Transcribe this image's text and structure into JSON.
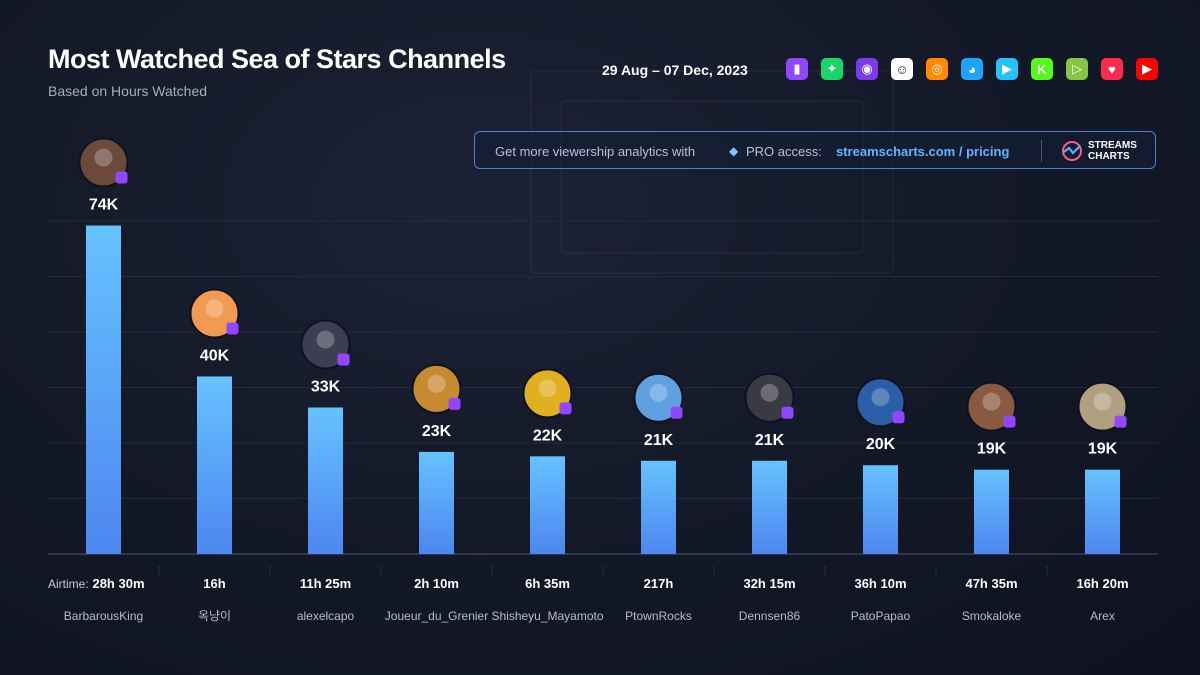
{
  "header": {
    "title": "Most Watched Sea of Stars Channels",
    "subtitle": "Based on Hours Watched",
    "date_range": "29 Aug – 07 Dec, 2023"
  },
  "platforms": [
    {
      "name": "twitch-icon",
      "color": "#9146ff",
      "glyph": "▮"
    },
    {
      "name": "trovo-icon",
      "color": "#19d66b",
      "glyph": "✦"
    },
    {
      "name": "kick-alt-icon",
      "color": "#7c3aed",
      "glyph": "◉"
    },
    {
      "name": "ghost-icon",
      "color": "#ffffff",
      "glyph": "☺"
    },
    {
      "name": "vk-play-icon",
      "color": "#ff8a00",
      "glyph": "◎"
    },
    {
      "name": "bigo-icon",
      "color": "#1fa3ff",
      "glyph": "◕"
    },
    {
      "name": "mobile-stream-icon",
      "color": "#22c3ff",
      "glyph": "▶"
    },
    {
      "name": "kick-icon",
      "color": "#53fc18",
      "glyph": "K"
    },
    {
      "name": "rumble-icon",
      "color": "#85c742",
      "glyph": "▷"
    },
    {
      "name": "heart-stream-icon",
      "color": "#ff2a4d",
      "glyph": "♥"
    },
    {
      "name": "youtube-icon",
      "color": "#ff0000",
      "glyph": "▶"
    }
  ],
  "promo": {
    "text": "Get more viewership analytics with",
    "pro": "PRO access:",
    "link": "streamscharts.com / pricing",
    "logo_line1": "STREAMS",
    "logo_line2": "CHARTS"
  },
  "airtime_label": "Airtime:",
  "colors": {
    "bar_top": "#66c2ff",
    "bar_bottom": "#4d86f0",
    "badge": "#9146ff",
    "grid": "#232a3e"
  },
  "chart_data": {
    "type": "bar",
    "categories": [
      "BarbarousKing",
      "옥냥이",
      "alexelcapo",
      "Joueur_du_Grenier",
      "Shisheyu_Mayamoto",
      "PtownRocks",
      "Dennsen86",
      "PatoPapao",
      "Smokaloke",
      "Arex"
    ],
    "values": [
      74,
      40,
      33,
      23,
      22,
      21,
      21,
      20,
      19,
      19
    ],
    "data_labels": [
      "74K",
      "40K",
      "33K",
      "23K",
      "22K",
      "21K",
      "21K",
      "20K",
      "19K",
      "19K"
    ],
    "airtime": [
      "28h 30m",
      "16h",
      "11h 25m",
      "2h 10m",
      "6h 35m",
      "217h",
      "32h 15m",
      "36h 10m",
      "47h 35m",
      "16h 20m"
    ],
    "avatar_colors": [
      "#6b4a3a",
      "#f29a52",
      "#3a3f52",
      "#c88a30",
      "#e0b020",
      "#5fa0e0",
      "#3a3a44",
      "#2a5fa8",
      "#8a5a40",
      "#b0a080"
    ],
    "ylim": [
      0,
      82
    ],
    "grid": true
  }
}
